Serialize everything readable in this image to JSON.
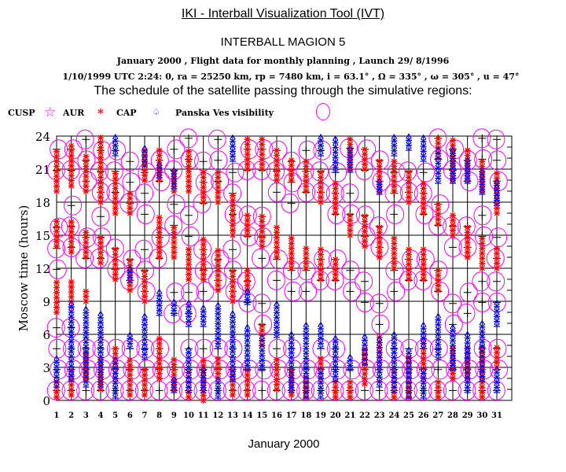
{
  "header": {
    "app_title": "IKI - Interball Visualization Tool (IVT)",
    "satellite": "INTERBALL MAGION 5",
    "line1": "January 2000 ,  Flight data for monthly planning ,    Launch 29/ 8/1996",
    "line2": "1/10/1999 UTC  2:24: 0, ra =  25250 km, rp =    7480 km, i = 63.1° , Ω = 335° , ω = 305° , u =  47°",
    "schedule": "The schedule of the satellite passing through the simulative regions:"
  },
  "legend": [
    {
      "label": "CUSP",
      "symbol": "star",
      "color": "#ff00ff"
    },
    {
      "label": "AUR",
      "symbol": "asterisk",
      "color": "#ff0000"
    },
    {
      "label": "CAP",
      "symbol": "spade",
      "color": "#0000ff"
    },
    {
      "label": "Panska Ves visibility",
      "symbol": "circle",
      "color": "#ff00ff"
    }
  ],
  "chart_data": {
    "type": "scatter",
    "xlabel": "January 2000",
    "ylabel": "Moscow time (hours)",
    "xlim": [
      1,
      31
    ],
    "ylim": [
      0,
      24
    ],
    "x_ticks": [
      1,
      2,
      3,
      4,
      5,
      6,
      7,
      8,
      9,
      10,
      11,
      12,
      13,
      14,
      15,
      16,
      17,
      18,
      19,
      20,
      21,
      22,
      23,
      24,
      25,
      26,
      27,
      28,
      29,
      30,
      31
    ],
    "y_ticks": [
      0,
      3,
      6,
      9,
      12,
      15,
      18,
      21,
      24
    ],
    "grid": true,
    "days": [
      {
        "d": 1,
        "aur": [
          [
            19,
            23
          ],
          [
            14,
            16.5
          ],
          [
            8,
            11
          ],
          [
            0.3,
            2
          ]
        ],
        "cap": [
          [
            1.5,
            4
          ]
        ],
        "vis": [
          [
            0,
            7
          ],
          [
            11,
            17
          ],
          [
            20,
            24
          ]
        ]
      },
      {
        "d": 2,
        "aur": [
          [
            19.5,
            23.5
          ],
          [
            13.5,
            16.5
          ],
          [
            8.5,
            11
          ],
          [
            0.5,
            3
          ]
        ],
        "cap": [
          [
            2,
            9
          ]
        ],
        "vis": [
          [
            0,
            7
          ],
          [
            13,
            18
          ],
          [
            20,
            24
          ]
        ]
      },
      {
        "d": 3,
        "aur": [
          [
            19,
            22.5
          ],
          [
            13,
            15.5
          ],
          [
            9,
            10
          ],
          [
            2,
            4.5
          ]
        ],
        "cap": [
          [
            1.5,
            8.5
          ]
        ],
        "vis": [
          [
            0,
            6
          ],
          [
            12,
            16
          ],
          [
            19,
            24
          ]
        ]
      },
      {
        "d": 4,
        "aur": [
          [
            18,
            24
          ],
          [
            12.5,
            15
          ],
          [
            1,
            4
          ]
        ],
        "cap": [
          [
            1.5,
            8
          ]
        ],
        "vis": [
          [
            0,
            5
          ],
          [
            12,
            17
          ],
          [
            18,
            24
          ]
        ]
      },
      {
        "d": 5,
        "aur": [
          [
            17,
            21
          ],
          [
            11,
            14
          ],
          [
            2,
            5
          ]
        ],
        "cap": [
          [
            0.5,
            4
          ],
          [
            22.5,
            24
          ]
        ],
        "vis": [
          [
            0,
            6
          ],
          [
            11,
            15
          ],
          [
            18,
            23
          ]
        ]
      },
      {
        "d": 6,
        "aur": [
          [
            17,
            19
          ],
          [
            10,
            13
          ],
          [
            0.5,
            4
          ]
        ],
        "cap": [
          [
            5,
            6
          ],
          [
            11,
            12
          ]
        ],
        "vis": [
          [
            0,
            5
          ],
          [
            10,
            14
          ],
          [
            17,
            22
          ]
        ]
      },
      {
        "d": 7,
        "aur": [
          [
            20,
            23
          ],
          [
            9,
            12
          ],
          [
            0.5,
            3
          ]
        ],
        "cap": [
          [
            4,
            8
          ],
          [
            21.5,
            23
          ]
        ],
        "vis": [
          [
            0,
            6
          ],
          [
            9,
            14
          ],
          [
            16,
            22
          ]
        ]
      },
      {
        "d": 8,
        "aur": [
          [
            20,
            23
          ],
          [
            13,
            17
          ],
          [
            2,
            6
          ]
        ],
        "cap": [
          [
            8,
            10
          ],
          [
            20.5,
            21.5
          ]
        ],
        "vis": [
          [
            0,
            5
          ],
          [
            12,
            16
          ],
          [
            19,
            23
          ]
        ]
      },
      {
        "d": 9,
        "aur": [
          [
            19,
            21
          ],
          [
            13,
            16
          ],
          [
            1,
            4
          ]
        ],
        "cap": [
          [
            1,
            2
          ],
          [
            8,
            9
          ],
          [
            19.5,
            21
          ]
        ],
        "vis": [
          [
            0,
            4
          ],
          [
            7,
            10
          ],
          [
            15,
            18
          ],
          [
            20,
            24
          ]
        ]
      },
      {
        "d": 10,
        "aur": [
          [
            19,
            23
          ],
          [
            11,
            14
          ],
          [
            0.3,
            3
          ]
        ],
        "cap": [
          [
            1,
            5
          ],
          [
            7,
            9
          ]
        ],
        "vis": [
          [
            0,
            5
          ],
          [
            7,
            11
          ],
          [
            14,
            18
          ],
          [
            21,
            24
          ]
        ]
      },
      {
        "d": 11,
        "aur": [
          [
            18,
            21
          ],
          [
            11,
            15
          ],
          [
            0,
            4
          ]
        ],
        "cap": [
          [
            1,
            3
          ],
          [
            7,
            8.5
          ]
        ],
        "vis": [
          [
            0,
            5
          ],
          [
            9,
            14
          ],
          [
            17,
            22
          ]
        ]
      },
      {
        "d": 12,
        "aur": [
          [
            18,
            21
          ],
          [
            10,
            14
          ],
          [
            2,
            4
          ]
        ],
        "cap": [
          [
            0.5,
            2
          ],
          [
            5,
            9
          ]
        ],
        "vis": [
          [
            0,
            6
          ],
          [
            10,
            13
          ],
          [
            19,
            24
          ]
        ]
      },
      {
        "d": 13,
        "aur": [
          [
            15,
            19
          ],
          [
            9,
            12
          ],
          [
            0.5,
            3
          ]
        ],
        "cap": [
          [
            2,
            8
          ],
          [
            22,
            24
          ]
        ],
        "vis": [
          [
            0,
            5
          ],
          [
            9,
            14
          ],
          [
            16,
            21
          ]
        ]
      },
      {
        "d": 14,
        "aur": [
          [
            21,
            24
          ],
          [
            15,
            17
          ],
          [
            10,
            12
          ],
          [
            0.5,
            3
          ]
        ],
        "cap": [
          [
            3,
            7
          ],
          [
            9,
            10
          ]
        ],
        "vis": [
          [
            0,
            4
          ],
          [
            8,
            12
          ],
          [
            14,
            18
          ],
          [
            20,
            24
          ]
        ]
      },
      {
        "d": 15,
        "aur": [
          [
            21,
            24
          ],
          [
            14,
            17
          ],
          [
            5,
            7
          ]
        ],
        "cap": [
          [
            3,
            6
          ]
        ],
        "vis": [
          [
            0,
            4
          ],
          [
            6,
            9
          ],
          [
            12,
            17
          ],
          [
            20,
            24
          ]
        ]
      },
      {
        "d": 16,
        "aur": [
          [
            20,
            23
          ],
          [
            13,
            16
          ],
          [
            1,
            4
          ]
        ],
        "cap": [
          [
            6,
            9
          ]
        ],
        "vis": [
          [
            0,
            5
          ],
          [
            10,
            14
          ],
          [
            18,
            23
          ]
        ]
      },
      {
        "d": 17,
        "aur": [
          [
            20,
            22
          ],
          [
            12,
            15
          ],
          [
            0.5,
            3
          ]
        ],
        "cap": [
          [
            1,
            6
          ]
        ],
        "vis": [
          [
            0,
            5
          ],
          [
            9,
            13
          ],
          [
            17,
            22
          ]
        ]
      },
      {
        "d": 18,
        "aur": [
          [
            19,
            22
          ],
          [
            12,
            14
          ],
          [
            0.3,
            2.5
          ]
        ],
        "cap": [
          [
            0.5,
            7
          ]
        ],
        "vis": [
          [
            0,
            4
          ],
          [
            9,
            12
          ],
          [
            18,
            23
          ]
        ]
      },
      {
        "d": 19,
        "aur": [
          [
            18,
            21
          ],
          [
            11,
            14
          ],
          [
            2,
            4
          ]
        ],
        "cap": [
          [
            0.5,
            3
          ],
          [
            5,
            7
          ],
          [
            22.5,
            24
          ]
        ],
        "vis": [
          [
            0,
            5
          ],
          [
            10,
            14
          ],
          [
            18,
            23
          ]
        ]
      },
      {
        "d": 20,
        "aur": [
          [
            17,
            20
          ],
          [
            11,
            13
          ],
          [
            0.3,
            2
          ]
        ],
        "cap": [
          [
            2,
            6
          ],
          [
            21,
            24
          ]
        ],
        "vis": [
          [
            0,
            5
          ],
          [
            10,
            13
          ],
          [
            16,
            21
          ]
        ]
      },
      {
        "d": 21,
        "aur": [
          [
            21,
            24
          ],
          [
            15,
            17
          ],
          [
            0.3,
            2
          ]
        ],
        "cap": [
          [
            3,
            4
          ],
          [
            21,
            23
          ]
        ],
        "vis": [
          [
            0,
            4
          ],
          [
            9,
            13
          ],
          [
            16,
            20
          ],
          [
            22,
            24
          ]
        ]
      },
      {
        "d": 22,
        "aur": [
          [
            21,
            23
          ],
          [
            14,
            17
          ],
          [
            1.5,
            5
          ]
        ],
        "cap": [
          [
            3.5,
            6
          ]
        ],
        "vis": [
          [
            0,
            4
          ],
          [
            8,
            12
          ],
          [
            14,
            18
          ],
          [
            20,
            24
          ]
        ]
      },
      {
        "d": 23,
        "aur": [
          [
            19,
            22
          ],
          [
            13,
            16
          ],
          [
            3,
            6
          ]
        ],
        "cap": [
          [
            1.5,
            6
          ],
          [
            19,
            20
          ]
        ],
        "vis": [
          [
            0,
            4
          ],
          [
            6,
            10
          ],
          [
            13,
            17
          ],
          [
            19,
            23
          ]
        ]
      },
      {
        "d": 24,
        "aur": [
          [
            19,
            22
          ],
          [
            12,
            15
          ],
          [
            0.3,
            3
          ]
        ],
        "cap": [
          [
            1,
            6
          ],
          [
            22.5,
            24
          ]
        ],
        "vis": [
          [
            0,
            5
          ],
          [
            9,
            13
          ],
          [
            16,
            21
          ]
        ]
      },
      {
        "d": 25,
        "aur": [
          [
            18,
            21
          ],
          [
            11,
            14
          ],
          [
            0.3,
            4
          ]
        ],
        "cap": [
          [
            0.5,
            5
          ],
          [
            23,
            24
          ]
        ],
        "vis": [
          [
            0,
            6
          ],
          [
            10,
            14
          ],
          [
            18,
            22
          ]
        ]
      },
      {
        "d": 26,
        "aur": [
          [
            17,
            20
          ],
          [
            11,
            14
          ],
          [
            2,
            6
          ]
        ],
        "cap": [
          [
            0.5,
            3
          ],
          [
            5,
            7
          ],
          [
            22,
            24
          ]
        ],
        "vis": [
          [
            0,
            5
          ],
          [
            10,
            13
          ],
          [
            16,
            21
          ]
        ]
      },
      {
        "d": 27,
        "aur": [
          [
            22,
            24
          ],
          [
            16,
            18
          ],
          [
            10,
            12
          ],
          [
            0.3,
            2
          ]
        ],
        "cap": [
          [
            4,
            8
          ],
          [
            20,
            23
          ]
        ],
        "vis": [
          [
            0,
            5
          ],
          [
            9,
            13
          ],
          [
            15,
            19
          ],
          [
            21,
            24
          ]
        ]
      },
      {
        "d": 28,
        "aur": [
          [
            20,
            24
          ],
          [
            15,
            17
          ],
          [
            2,
            5
          ]
        ],
        "cap": [
          [
            3,
            7
          ],
          [
            20,
            23
          ]
        ],
        "vis": [
          [
            0,
            4
          ],
          [
            6,
            10
          ],
          [
            13,
            17
          ],
          [
            20,
            24
          ]
        ]
      },
      {
        "d": 29,
        "aur": [
          [
            20,
            23
          ],
          [
            13,
            16
          ],
          [
            2,
            5
          ]
        ],
        "cap": [
          [
            1,
            6
          ],
          [
            20,
            22
          ]
        ],
        "vis": [
          [
            0,
            4
          ],
          [
            7,
            11
          ],
          [
            13,
            17
          ],
          [
            19,
            23
          ]
        ]
      },
      {
        "d": 30,
        "aur": [
          [
            19,
            22
          ],
          [
            12,
            15
          ],
          [
            0.3,
            5
          ]
        ],
        "cap": [
          [
            2,
            7
          ],
          [
            19,
            21
          ]
        ],
        "vis": [
          [
            0,
            5
          ],
          [
            8,
            12
          ],
          [
            14,
            18
          ],
          [
            21,
            24
          ]
        ]
      },
      {
        "d": 31,
        "aur": [
          [
            17,
            21
          ],
          [
            12,
            14
          ],
          [
            3,
            5
          ]
        ],
        "cap": [
          [
            1,
            3
          ],
          [
            7,
            9
          ],
          [
            18,
            20
          ]
        ],
        "vis": [
          [
            0,
            5
          ],
          [
            8,
            11
          ],
          [
            12,
            15
          ],
          [
            19,
            24
          ]
        ]
      }
    ]
  }
}
